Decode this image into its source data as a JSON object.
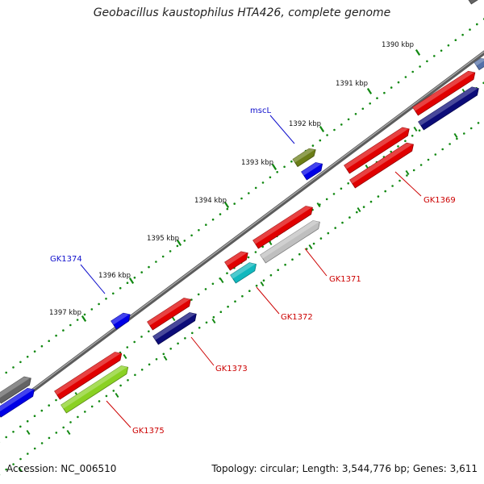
{
  "title": "Geobacillus kaustophilus HTA426, complete genome",
  "footer": {
    "accession": "Accession: NC_006510",
    "summary": "Topology: circular; Length: 3,544,776 bp; Genes: 3,611"
  },
  "colors": {
    "background": "#ffffff",
    "dots": "#118811",
    "backbone": "#777777",
    "feature_label": "#cc0000",
    "gene_name_label": "#1010cc"
  },
  "ticks": [
    {
      "label": "1390 kbp"
    },
    {
      "label": "1391 kbp"
    },
    {
      "label": "1392 kbp"
    },
    {
      "label": "1393 kbp"
    },
    {
      "label": "1394 kbp"
    },
    {
      "label": "1395 kbp"
    },
    {
      "label": "1396 kbp"
    },
    {
      "label": "1397 kbp"
    }
  ],
  "labels": [
    {
      "text": "mscL",
      "kind": "gene_name"
    },
    {
      "text": "GK1374",
      "kind": "gene_name"
    },
    {
      "text": "GK1369",
      "kind": "feature"
    },
    {
      "text": "GK1371",
      "kind": "feature"
    },
    {
      "text": "GK1372",
      "kind": "feature"
    },
    {
      "text": "GK1373",
      "kind": "feature"
    },
    {
      "text": "GK1375",
      "kind": "feature"
    }
  ],
  "features": [
    {
      "color": "#e00000"
    },
    {
      "color": "#0c0c78"
    },
    {
      "color": "#e00000"
    },
    {
      "color": "#e00000"
    },
    {
      "color": "#646464"
    },
    {
      "color": "#0000e6"
    },
    {
      "color": "#6b7d17"
    },
    {
      "color": "#e00000"
    },
    {
      "color": "#bfbfbf"
    },
    {
      "color": "#e00000"
    },
    {
      "color": "#10b8be"
    },
    {
      "color": "#0000e6"
    },
    {
      "color": "#e00000"
    },
    {
      "color": "#0c0c78"
    },
    {
      "color": "#e00000"
    },
    {
      "color": "#8ad123"
    },
    {
      "color": "#646464"
    },
    {
      "color": "#0000e6"
    },
    {
      "color": "#5470a8"
    }
  ]
}
